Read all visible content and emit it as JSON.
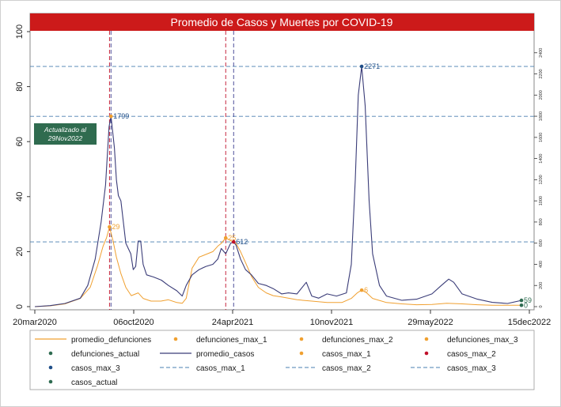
{
  "chart_data": {
    "type": "line",
    "title": "Promedio de Casos y Muertes por COVID-19",
    "update_note": [
      "Actualizado al",
      "29Nov2022"
    ],
    "left_axis": {
      "ylim": [
        0,
        100
      ],
      "ticks": [
        0,
        20,
        40,
        60,
        80,
        100
      ]
    },
    "right_axis": {
      "ylim": [
        0,
        2600
      ],
      "ticks": [
        0,
        200,
        400,
        600,
        800,
        1000,
        1200,
        1400,
        1600,
        1800,
        2000,
        2200,
        2400
      ]
    },
    "x_axis": {
      "start": "2020-03-20",
      "end": "2022-12-15",
      "ticks": [
        {
          "date": "2020-03-20",
          "label": "20mar2020"
        },
        {
          "date": "2020-10-06",
          "label": "06oct2020"
        },
        {
          "date": "2021-04-24",
          "label": "24apr2021"
        },
        {
          "date": "2021-11-10",
          "label": "10nov2021"
        },
        {
          "date": "2022-05-29",
          "label": "29may2022"
        },
        {
          "date": "2022-12-15",
          "label": "15dec2022"
        }
      ]
    },
    "series": [
      {
        "name": "promedio_defunciones",
        "axis": "left",
        "color": "#f0a030",
        "points": [
          [
            "2020-03-20",
            0
          ],
          [
            "2020-04-20",
            0.3
          ],
          [
            "2020-05-20",
            1
          ],
          [
            "2020-06-20",
            3
          ],
          [
            "2020-07-10",
            7
          ],
          [
            "2020-07-25",
            15
          ],
          [
            "2020-08-05",
            22
          ],
          [
            "2020-08-12",
            25
          ],
          [
            "2020-08-18",
            29
          ],
          [
            "2020-08-25",
            24
          ],
          [
            "2020-09-01",
            18
          ],
          [
            "2020-09-10",
            12
          ],
          [
            "2020-09-20",
            7
          ],
          [
            "2020-10-01",
            4
          ],
          [
            "2020-10-15",
            5
          ],
          [
            "2020-10-25",
            3
          ],
          [
            "2020-11-10",
            2
          ],
          [
            "2020-11-30",
            2
          ],
          [
            "2020-12-15",
            2.5
          ],
          [
            "2021-01-01",
            1.5
          ],
          [
            "2021-01-12",
            1.2
          ],
          [
            "2021-01-20",
            3
          ],
          [
            "2021-02-01",
            14
          ],
          [
            "2021-02-15",
            18
          ],
          [
            "2021-03-01",
            19
          ],
          [
            "2021-03-15",
            20
          ],
          [
            "2021-03-25",
            22
          ],
          [
            "2021-04-01",
            23
          ],
          [
            "2021-04-10",
            25
          ],
          [
            "2021-04-20",
            24
          ],
          [
            "2021-05-01",
            23
          ],
          [
            "2021-05-10",
            20
          ],
          [
            "2021-05-20",
            16
          ],
          [
            "2021-06-01",
            11
          ],
          [
            "2021-06-15",
            7
          ],
          [
            "2021-07-01",
            5
          ],
          [
            "2021-07-15",
            4
          ],
          [
            "2021-08-01",
            3.5
          ],
          [
            "2021-09-01",
            2.5
          ],
          [
            "2021-10-01",
            2
          ],
          [
            "2021-11-01",
            1.5
          ],
          [
            "2021-12-01",
            1.5
          ],
          [
            "2021-12-20",
            3
          ],
          [
            "2022-01-01",
            5
          ],
          [
            "2022-01-10",
            6
          ],
          [
            "2022-01-20",
            5
          ],
          [
            "2022-02-01",
            3
          ],
          [
            "2022-03-01",
            1.5
          ],
          [
            "2022-04-01",
            1
          ],
          [
            "2022-05-01",
            0.7
          ],
          [
            "2022-06-01",
            0.8
          ],
          [
            "2022-07-01",
            1.2
          ],
          [
            "2022-08-01",
            1
          ],
          [
            "2022-09-01",
            0.7
          ],
          [
            "2022-10-01",
            0.5
          ],
          [
            "2022-11-01",
            0.5
          ],
          [
            "2022-11-29",
            0.5
          ]
        ]
      },
      {
        "name": "promedio_casos",
        "axis": "right",
        "color": "#3a3c78",
        "points": [
          [
            "2020-03-20",
            0
          ],
          [
            "2020-04-20",
            10
          ],
          [
            "2020-05-20",
            30
          ],
          [
            "2020-06-20",
            80
          ],
          [
            "2020-07-05",
            200
          ],
          [
            "2020-07-20",
            450
          ],
          [
            "2020-08-01",
            800
          ],
          [
            "2020-08-10",
            1150
          ],
          [
            "2020-08-17",
            1700
          ],
          [
            "2020-08-21",
            1799
          ],
          [
            "2020-08-28",
            1500
          ],
          [
            "2020-09-01",
            1200
          ],
          [
            "2020-09-05",
            1050
          ],
          [
            "2020-09-10",
            1000
          ],
          [
            "2020-09-15",
            800
          ],
          [
            "2020-09-20",
            600
          ],
          [
            "2020-09-25",
            550
          ],
          [
            "2020-09-30",
            500
          ],
          [
            "2020-10-05",
            350
          ],
          [
            "2020-10-10",
            380
          ],
          [
            "2020-10-15",
            620
          ],
          [
            "2020-10-20",
            620
          ],
          [
            "2020-10-25",
            400
          ],
          [
            "2020-11-01",
            300
          ],
          [
            "2020-11-15",
            280
          ],
          [
            "2020-12-01",
            250
          ],
          [
            "2020-12-15",
            200
          ],
          [
            "2021-01-01",
            150
          ],
          [
            "2021-01-12",
            100
          ],
          [
            "2021-01-20",
            200
          ],
          [
            "2021-02-01",
            300
          ],
          [
            "2021-02-15",
            350
          ],
          [
            "2021-03-01",
            380
          ],
          [
            "2021-03-15",
            400
          ],
          [
            "2021-03-25",
            450
          ],
          [
            "2021-04-01",
            550
          ],
          [
            "2021-04-10",
            500
          ],
          [
            "2021-04-20",
            600
          ],
          [
            "2021-04-26",
            612
          ],
          [
            "2021-05-01",
            580
          ],
          [
            "2021-05-10",
            450
          ],
          [
            "2021-05-20",
            350
          ],
          [
            "2021-06-01",
            300
          ],
          [
            "2021-06-15",
            220
          ],
          [
            "2021-07-01",
            200
          ],
          [
            "2021-07-15",
            170
          ],
          [
            "2021-08-01",
            120
          ],
          [
            "2021-08-15",
            130
          ],
          [
            "2021-09-01",
            120
          ],
          [
            "2021-09-20",
            230
          ],
          [
            "2021-10-01",
            100
          ],
          [
            "2021-10-15",
            80
          ],
          [
            "2021-11-01",
            120
          ],
          [
            "2021-11-20",
            100
          ],
          [
            "2021-12-10",
            130
          ],
          [
            "2021-12-20",
            400
          ],
          [
            "2021-12-28",
            1200
          ],
          [
            "2022-01-03",
            2000
          ],
          [
            "2022-01-10",
            2271
          ],
          [
            "2022-01-17",
            1900
          ],
          [
            "2022-01-25",
            1000
          ],
          [
            "2022-02-01",
            500
          ],
          [
            "2022-02-15",
            200
          ],
          [
            "2022-03-01",
            100
          ],
          [
            "2022-04-01",
            60
          ],
          [
            "2022-05-01",
            70
          ],
          [
            "2022-06-01",
            120
          ],
          [
            "2022-06-20",
            200
          ],
          [
            "2022-07-05",
            260
          ],
          [
            "2022-07-15",
            230
          ],
          [
            "2022-08-01",
            120
          ],
          [
            "2022-09-01",
            70
          ],
          [
            "2022-10-01",
            40
          ],
          [
            "2022-11-01",
            30
          ],
          [
            "2022-11-29",
            59
          ]
        ]
      }
    ],
    "markers": [
      {
        "name": "defunciones_max_1",
        "axis": "left",
        "date": "2020-08-18",
        "value": 29,
        "label": "29",
        "color": "#f0a030",
        "label_color": "#f0a030"
      },
      {
        "name": "defunciones_max_2",
        "axis": "left",
        "date": "2021-04-10",
        "value": 25,
        "label": "25",
        "color": "#f0a030",
        "label_color": "#f0a030"
      },
      {
        "name": "defunciones_max_3",
        "axis": "left",
        "date": "2022-01-10",
        "value": 6,
        "label": "6",
        "color": "#f0a030",
        "label_color": "#f0a030"
      },
      {
        "name": "defunciones_actual",
        "axis": "left",
        "date": "2022-11-29",
        "value": 0.5,
        "label": "0",
        "color": "#2e6b50",
        "label_color": "#2e6b50"
      },
      {
        "name": "casos_max_1",
        "axis": "right",
        "date": "2020-08-21",
        "value": 1799,
        "label": "1799",
        "color": "#f0a030",
        "label_color": "#1f4e88"
      },
      {
        "name": "casos_max_2",
        "axis": "right",
        "date": "2021-04-26",
        "value": 612,
        "label": "612",
        "color": "#c0102a",
        "label_color": "#1f4e88"
      },
      {
        "name": "casos_max_3",
        "axis": "right",
        "date": "2022-01-10",
        "value": 2271,
        "label": "2271",
        "color": "#1f4e88",
        "label_color": "#1f4e88"
      },
      {
        "name": "casos_actual",
        "axis": "right",
        "date": "2022-11-29",
        "value": 59,
        "label": "59",
        "color": "#2e6b50",
        "label_color": "#2e6b50"
      }
    ],
    "hlines": [
      {
        "name": "casos_max_1",
        "axis": "right",
        "value": 1799,
        "color": "#4a7fb0"
      },
      {
        "name": "casos_max_2",
        "axis": "right",
        "value": 612,
        "color": "#4a7fb0"
      },
      {
        "name": "casos_max_3",
        "axis": "right",
        "value": 2271,
        "color": "#4a7fb0"
      }
    ],
    "vlines": [
      {
        "date": "2020-08-18",
        "color": "#c0102a"
      },
      {
        "date": "2020-08-21",
        "color": "#3a3c90"
      },
      {
        "date": "2021-04-10",
        "color": "#c0102a"
      },
      {
        "date": "2021-04-26",
        "color": "#3a3c90"
      }
    ],
    "legend": {
      "position": "bottom",
      "items": [
        {
          "label": "promedio_defunciones",
          "kind": "line",
          "color": "#f0a030"
        },
        {
          "label": "defunciones_max_1",
          "kind": "dot",
          "color": "#f0a030"
        },
        {
          "label": "defunciones_max_2",
          "kind": "dot",
          "color": "#f0a030"
        },
        {
          "label": "defunciones_max_3",
          "kind": "dot",
          "color": "#f0a030"
        },
        {
          "label": "defunciones_actual",
          "kind": "dot",
          "color": "#2e6b50"
        },
        {
          "label": "promedio_casos",
          "kind": "line",
          "color": "#3a3c78"
        },
        {
          "label": "casos_max_1",
          "kind": "dot",
          "color": "#f0a030"
        },
        {
          "label": "casos_max_2",
          "kind": "dot",
          "color": "#c0102a"
        },
        {
          "label": "casos_max_3",
          "kind": "dot",
          "color": "#1f4e88"
        },
        {
          "label": "casos_max_1",
          "kind": "dash",
          "color": "#4a7fb0"
        },
        {
          "label": "casos_max_2",
          "kind": "dash",
          "color": "#4a7fb0"
        },
        {
          "label": "casos_max_3",
          "kind": "dash",
          "color": "#4a7fb0"
        },
        {
          "label": "casos_actual",
          "kind": "dot",
          "color": "#2e6b50"
        }
      ]
    },
    "colors": {
      "title_bar": "#cc1a1a",
      "note_box": "#2f6b4f"
    }
  }
}
